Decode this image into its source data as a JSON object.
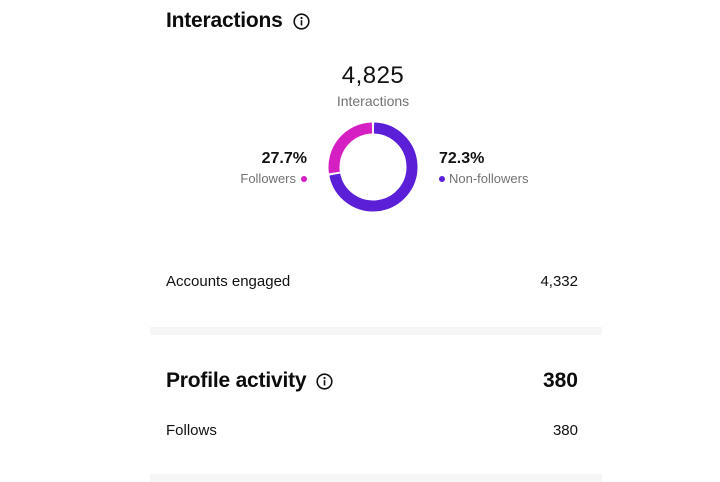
{
  "interactions": {
    "title": "Interactions",
    "total": "4,825",
    "total_label": "Interactions",
    "followers": {
      "percent": "27.7%",
      "label": "Followers",
      "value": 27.7,
      "color": "#d61fc2"
    },
    "non_followers": {
      "percent": "72.3%",
      "label": "Non-followers",
      "value": 72.3,
      "color": "#5a1fd6"
    },
    "accounts_engaged_label": "Accounts engaged",
    "accounts_engaged_value": "4,332"
  },
  "profile_activity": {
    "title": "Profile activity",
    "total": "380",
    "follows_label": "Follows",
    "follows_value": "380"
  }
}
